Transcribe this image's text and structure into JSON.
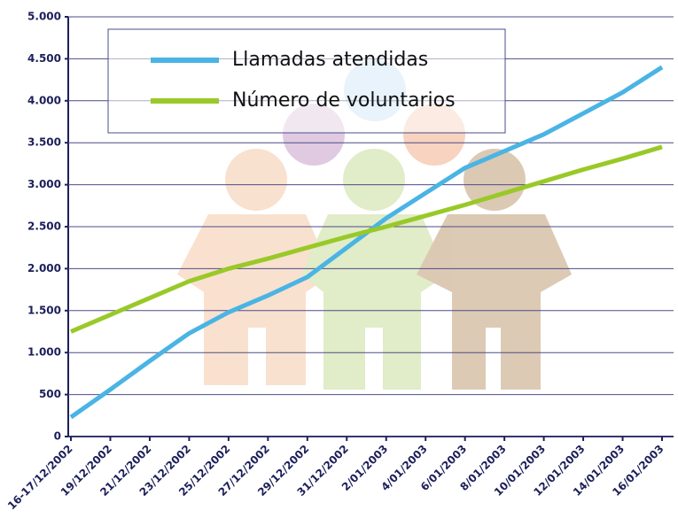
{
  "chart_data": {
    "type": "line",
    "categories": [
      "16-17/12/2002",
      "19/12/2002",
      "21/12/2002",
      "23/12/2002",
      "25/12/2002",
      "27/12/2002",
      "29/12/2002",
      "31/12/2002",
      "2/01/2003",
      "4/01/2003",
      "6/01/2003",
      "8/01/2003",
      "10/01/2003",
      "12/01/2003",
      "14/01/2003",
      "16/01/2003"
    ],
    "series": [
      {
        "name": "Llamadas atendidas",
        "color": "#4ab4e4",
        "values": [
          230,
          560,
          900,
          1230,
          1480,
          1680,
          1900,
          2250,
          2600,
          2900,
          3200,
          3400,
          3600,
          3850,
          4100,
          4400
        ]
      },
      {
        "name": "Número de voluntarios",
        "color": "#99c928",
        "values": [
          1250,
          1450,
          1650,
          1850,
          2000,
          2120,
          2250,
          2380,
          2500,
          2630,
          2760,
          2900,
          3040,
          3180,
          3310,
          3450
        ]
      }
    ],
    "ylim": [
      0,
      5000
    ],
    "yticks": [
      0,
      500,
      {
        "value": 1000,
        "label": "1.000"
      },
      {
        "value": 1500,
        "label": "1.500"
      },
      {
        "value": 2000,
        "label": "2.000"
      },
      {
        "value": 2500,
        "label": "2.500"
      },
      {
        "value": 3000,
        "label": "3.000"
      },
      {
        "value": 3500,
        "label": "3.500"
      },
      {
        "value": 4000,
        "label": "4.000"
      },
      {
        "value": 4500,
        "label": "4.500"
      },
      {
        "value": 5000,
        "label": "5.000"
      }
    ],
    "grid": true,
    "legend": "upper-left"
  }
}
